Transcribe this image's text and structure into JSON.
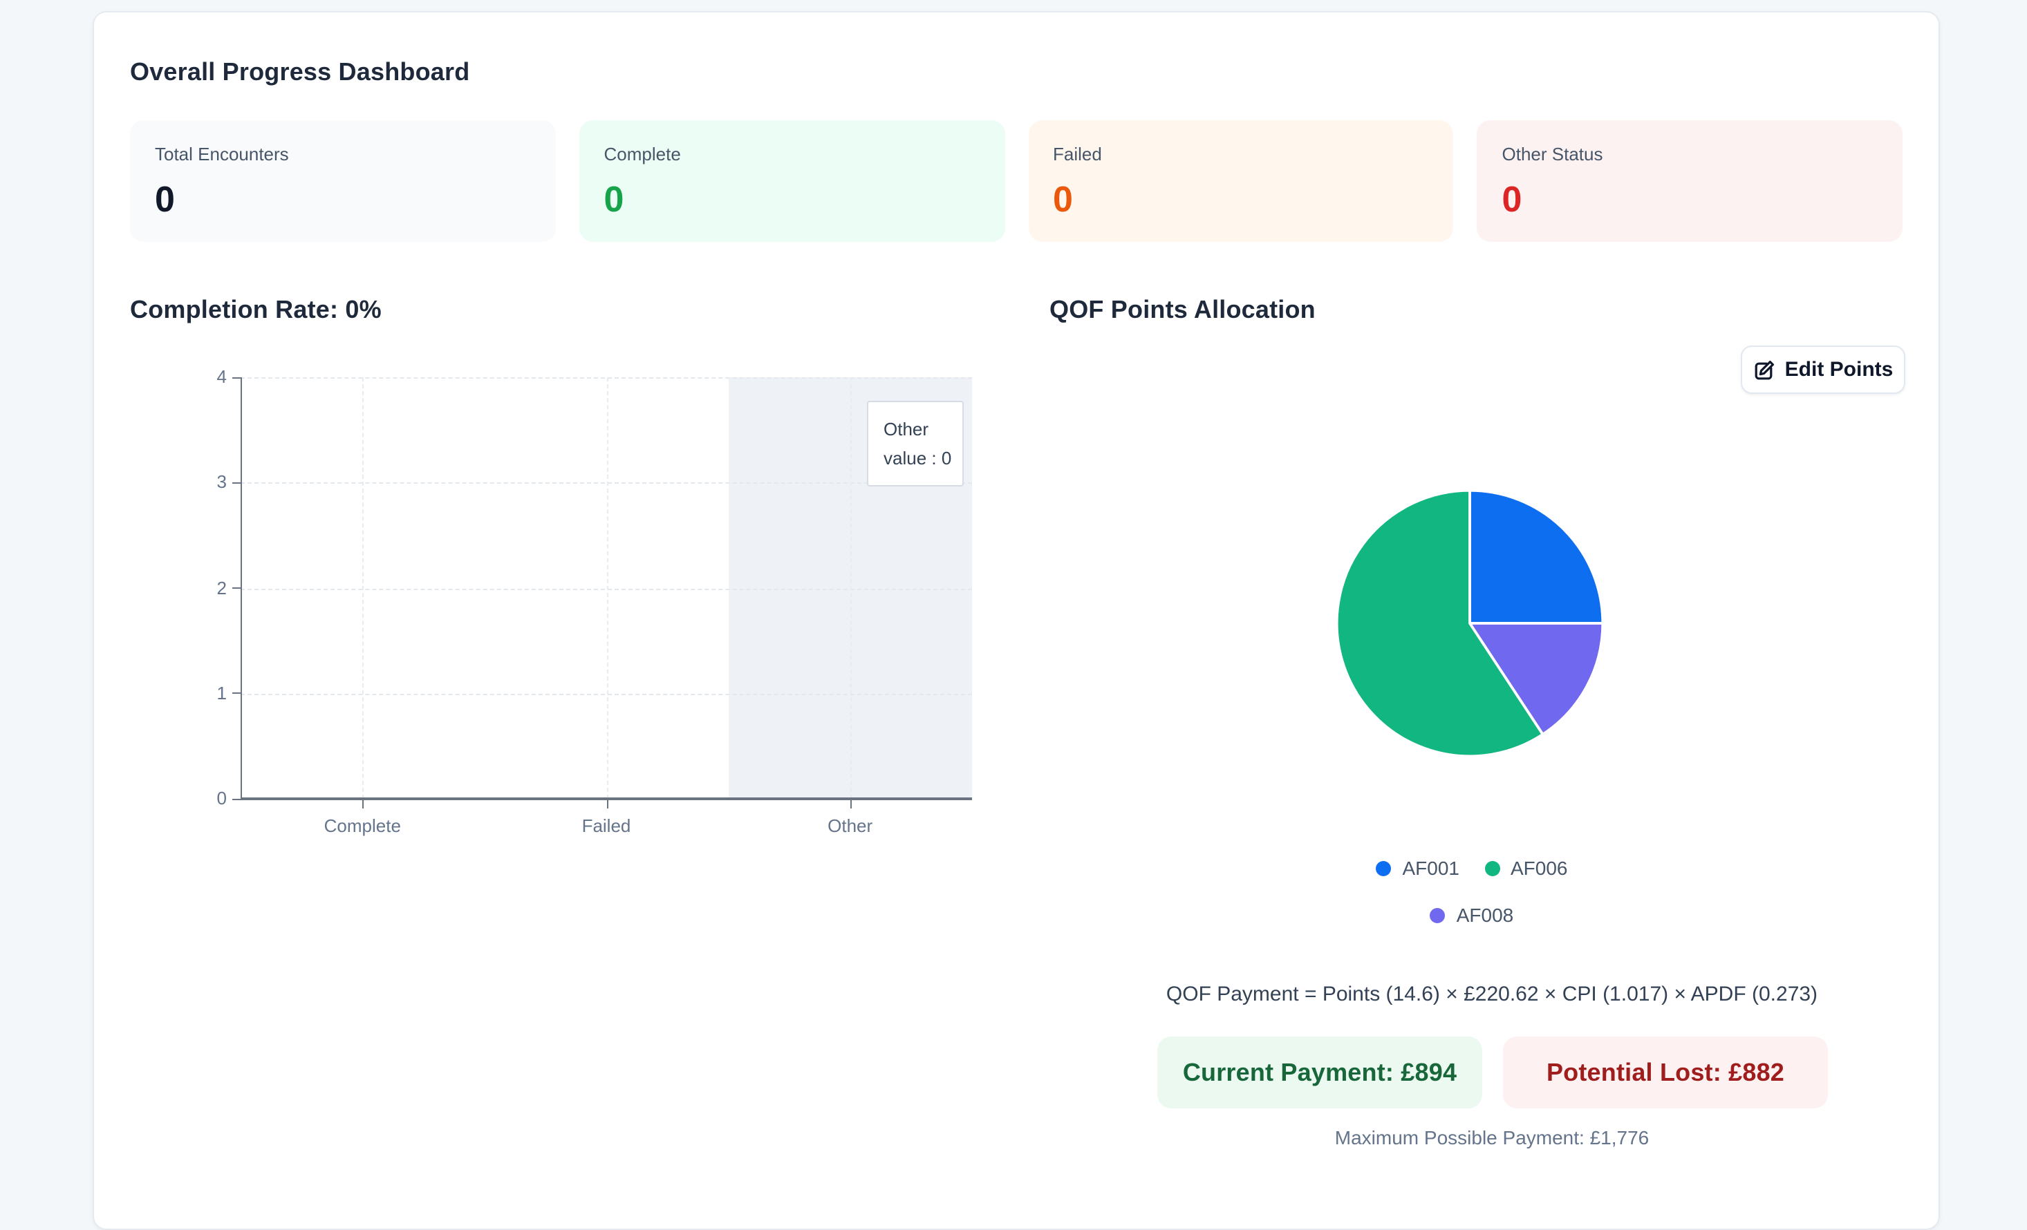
{
  "page": {
    "title": "Overall Progress Dashboard"
  },
  "stats": [
    {
      "label": "Total Encounters",
      "value": "0",
      "bg": "#f8fafc",
      "color": "#111827"
    },
    {
      "label": "Complete",
      "value": "0",
      "bg": "#ecfdf5",
      "color": "#16a34a"
    },
    {
      "label": "Failed",
      "value": "0",
      "bg": "#fff7ed",
      "color": "#ea580c"
    },
    {
      "label": "Other Status",
      "value": "0",
      "bg": "#fdf2f2",
      "color": "#dc2626"
    }
  ],
  "completion": {
    "heading": "Completion Rate: 0%"
  },
  "qof": {
    "heading": "QOF Points Allocation",
    "edit_button": "Edit Points",
    "formula": "QOF Payment = Points (14.6) × £220.62 × CPI (1.017) × APDF (0.273)",
    "current_payment": "Current Payment: £894",
    "potential_lost": "Potential Lost: £882",
    "max_payment": "Maximum Possible Payment: £1,776"
  },
  "chart_data": [
    {
      "type": "bar",
      "title": "Completion Rate: 0%",
      "categories": [
        "Complete",
        "Failed",
        "Other"
      ],
      "values": [
        0,
        0,
        0
      ],
      "xlabel": "",
      "ylabel": "",
      "ylim": [
        0,
        4
      ],
      "yticks": [
        0,
        1,
        2,
        3,
        4
      ],
      "grid": true,
      "highlight_category": "Other",
      "highlight_color": "#eef1f6",
      "tooltip": {
        "lines": [
          "Other",
          "value : 0"
        ]
      }
    },
    {
      "type": "pie",
      "title": "QOF Points Allocation",
      "start": "top",
      "direction": "clockwise",
      "slices": [
        {
          "label": "AF001",
          "percent": 25.0,
          "color": "#0d6ef0"
        },
        {
          "label": "AF008",
          "percent": 15.75,
          "color": "#7068ee"
        },
        {
          "label": "AF006",
          "percent": 59.25,
          "color": "#12b680"
        }
      ],
      "legend": [
        "AF001",
        "AF006",
        "AF008"
      ],
      "legend_position": "bottom"
    }
  ]
}
